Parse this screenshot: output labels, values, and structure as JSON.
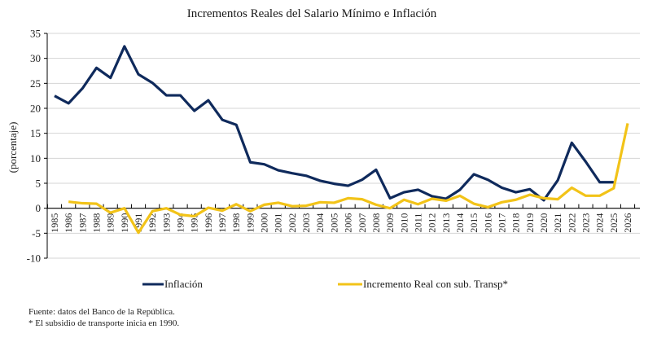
{
  "chart_data": {
    "type": "line",
    "title": "Incrementos Reales del Salario  Mínimo e Inflación",
    "xlabel": "",
    "ylabel": "(porcentaje)",
    "ylim": [
      -10,
      35
    ],
    "yticks": [
      35,
      30,
      25,
      20,
      15,
      10,
      5,
      0,
      -5,
      -10
    ],
    "ytick_labels": [
      "35",
      "30",
      "25",
      "20",
      "15",
      "10",
      "5",
      "0",
      "-5",
      "-10"
    ],
    "grid": true,
    "legend_position": "bottom",
    "categories": [
      "1985",
      "1986",
      "1987",
      "1988",
      "1989",
      "1990",
      "1991",
      "1992",
      "1993",
      "1994",
      "1995",
      "1996",
      "1997",
      "1998",
      "1999",
      "2000",
      "2001",
      "2002",
      "2003",
      "2004",
      "2005",
      "2006",
      "2007",
      "2008",
      "2009",
      "2010",
      "2011",
      "2012",
      "2013",
      "2014",
      "2015",
      "2016",
      "2017",
      "2018",
      "2019",
      "2020",
      "2021",
      "2022",
      "2023",
      "2024",
      "2025",
      "2026"
    ],
    "series": [
      {
        "name": "Inflación",
        "color": "#0f2a5c",
        "values": [
          22.5,
          21.0,
          24.0,
          28.1,
          26.1,
          32.4,
          26.8,
          25.1,
          22.6,
          22.6,
          19.5,
          21.6,
          17.7,
          16.7,
          9.2,
          8.8,
          7.6,
          7.0,
          6.5,
          5.5,
          4.9,
          4.5,
          5.7,
          7.7,
          2.0,
          3.2,
          3.7,
          2.4,
          1.9,
          3.7,
          6.8,
          5.7,
          4.1,
          3.2,
          3.8,
          1.6,
          5.6,
          13.1,
          9.3,
          5.2,
          5.2,
          null
        ]
      },
      {
        "name": "Incremento Real con sub. Transp*",
        "color": "#f2c318",
        "values": [
          null,
          1.3,
          1.0,
          0.9,
          -0.9,
          0.0,
          -4.9,
          -0.6,
          0.0,
          -1.3,
          -1.6,
          0.1,
          -0.5,
          0.8,
          -0.6,
          0.7,
          1.1,
          0.4,
          0.5,
          1.2,
          1.1,
          2.0,
          1.8,
          0.7,
          0.0,
          1.7,
          0.8,
          1.9,
          1.5,
          2.5,
          0.9,
          0.2,
          1.2,
          1.7,
          2.7,
          2.0,
          1.8,
          4.1,
          2.5,
          2.5,
          4.0,
          17.0
        ]
      }
    ]
  },
  "notes": {
    "source": "Fuente: datos del Banco de la República.",
    "footnote": "* El subsidio de transporte inicia  en 1990."
  }
}
